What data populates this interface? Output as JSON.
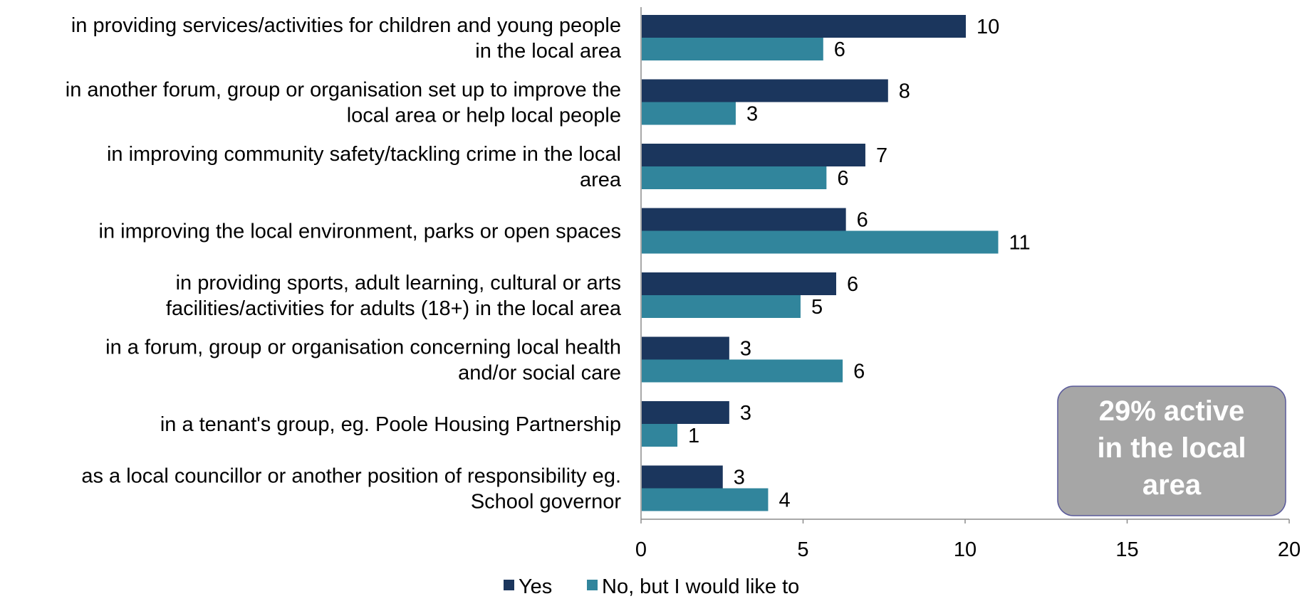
{
  "chart_data": {
    "type": "bar",
    "orientation": "horizontal",
    "categories": [
      [
        "in providing services/activities for children and young people",
        "in the local area"
      ],
      [
        "in another forum, group or organisation set up to improve the",
        "local area or help local people"
      ],
      [
        "in improving community safety/tackling crime in the local",
        "area"
      ],
      [
        "in improving the local environment, parks or open spaces"
      ],
      [
        "in providing sports, adult learning, cultural or arts",
        "facilities/activities for adults (18+) in the local area"
      ],
      [
        "in a forum, group or organisation concerning local health",
        "and/or social care"
      ],
      [
        "in a tenant's group, eg. Poole Housing Partnership"
      ],
      [
        "as a local councillor or another position of responsibility eg.",
        "School governor"
      ]
    ],
    "series": [
      {
        "name": "Yes",
        "color": "#1b365d",
        "values": [
          10,
          8,
          7,
          6,
          6,
          3,
          3,
          3
        ],
        "bar_values": [
          10,
          7.6,
          6.9,
          6.3,
          6.0,
          2.7,
          2.7,
          2.5
        ]
      },
      {
        "name": "No, but I would like to",
        "color": "#31859c",
        "values": [
          6,
          3,
          6,
          11,
          5,
          6,
          1,
          4
        ],
        "bar_values": [
          5.6,
          2.9,
          5.7,
          11.0,
          4.9,
          6.2,
          1.1,
          3.9
        ]
      }
    ],
    "x_ticks": [
      "0",
      "5",
      "10",
      "15",
      "20"
    ],
    "xlim": [
      0,
      20
    ],
    "xlabel": "",
    "ylabel": "",
    "grid": false,
    "legend_position": "bottom-center",
    "callout": {
      "lines": [
        "29% active",
        "in the local",
        "area"
      ],
      "background": "#a6a6a6",
      "border": "#5a5a9a"
    }
  }
}
